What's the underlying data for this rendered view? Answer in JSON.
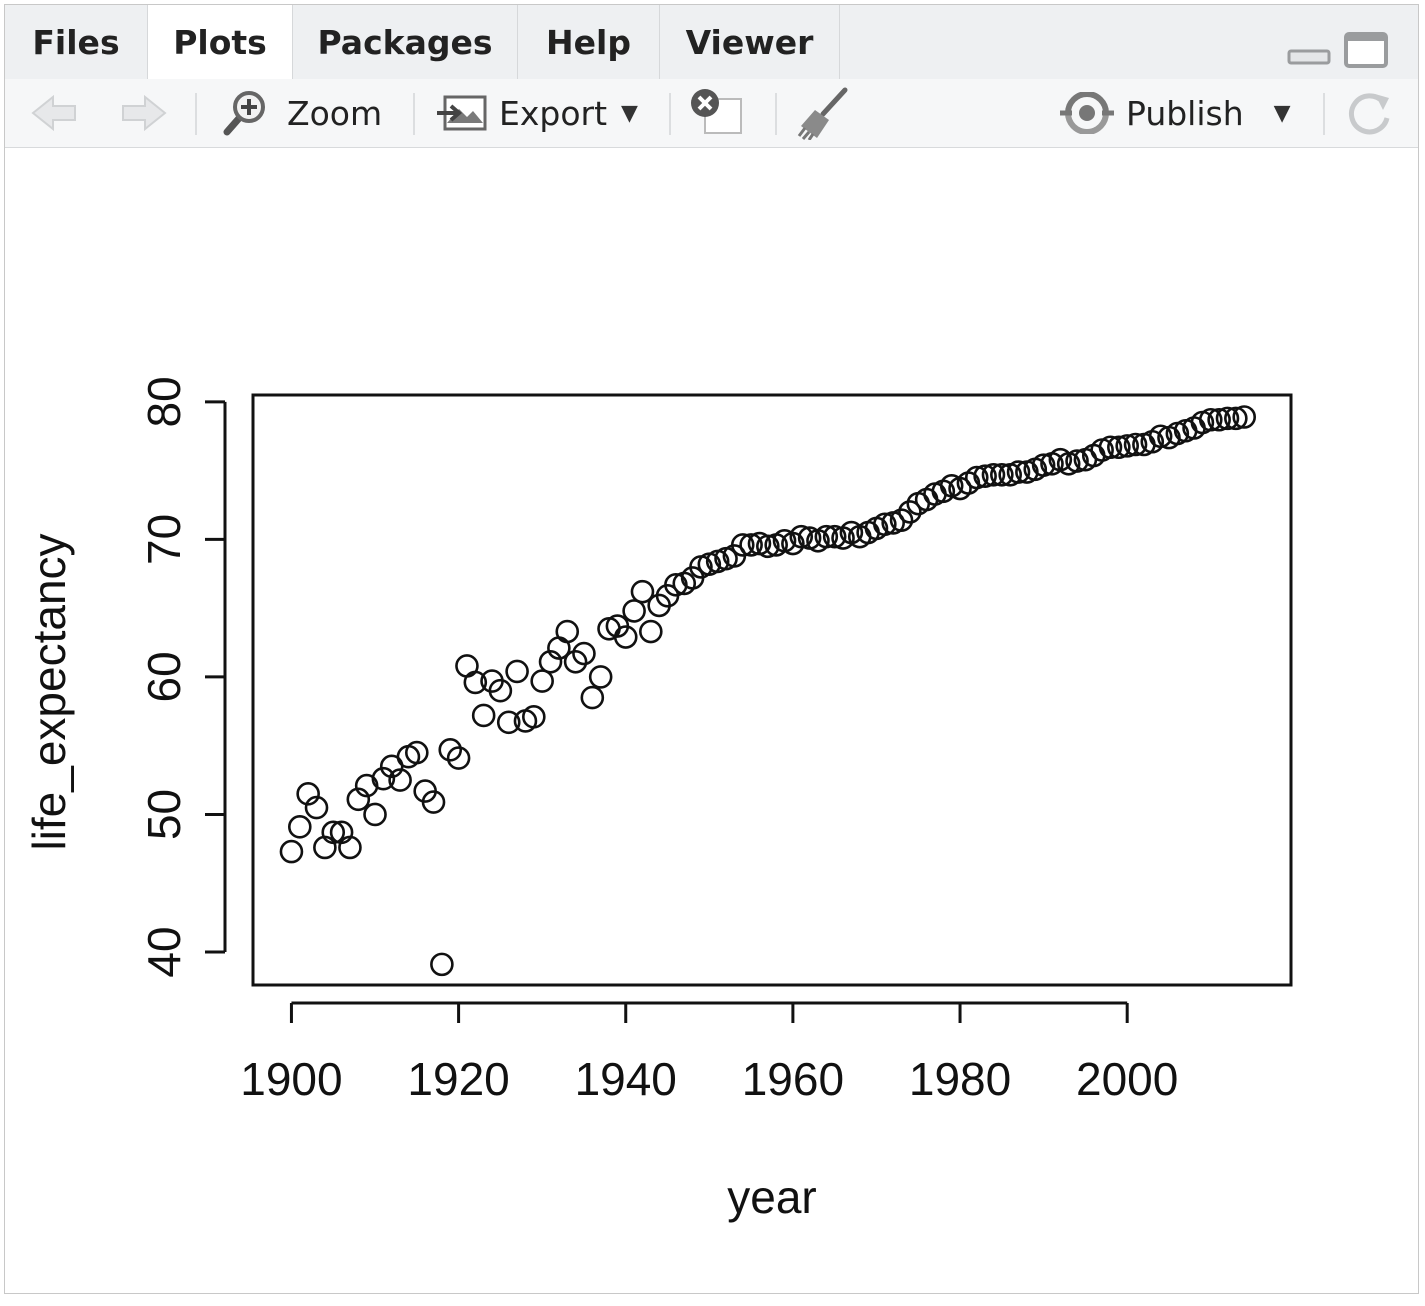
{
  "tabs": [
    {
      "label": "Files",
      "active": false
    },
    {
      "label": "Plots",
      "active": true
    },
    {
      "label": "Packages",
      "active": false
    },
    {
      "label": "Help",
      "active": false
    },
    {
      "label": "Viewer",
      "active": false
    }
  ],
  "toolbar": {
    "back_icon": "arrow-left-icon",
    "forward_icon": "arrow-right-icon",
    "zoom_label": "Zoom",
    "export_label": "Export",
    "remove_icon": "remove-plot-icon",
    "clear_icon": "broom-icon",
    "publish_label": "Publish",
    "refresh_icon": "refresh-icon"
  },
  "chart_data": {
    "type": "scatter",
    "title": "",
    "xlabel": "year",
    "ylabel": "life_expectancy",
    "xlim": [
      1895.4,
      2019.6
    ],
    "ylim": [
      37.6,
      80.5
    ],
    "xticks": [
      1900,
      1920,
      1940,
      1960,
      1980,
      2000
    ],
    "yticks": [
      40,
      50,
      60,
      70,
      80
    ],
    "grid": false,
    "marker": "open-circle",
    "points": [
      [
        1900,
        47.3
      ],
      [
        1901,
        49.1
      ],
      [
        1902,
        51.5
      ],
      [
        1903,
        50.5
      ],
      [
        1904,
        47.6
      ],
      [
        1905,
        48.7
      ],
      [
        1906,
        48.7
      ],
      [
        1907,
        47.6
      ],
      [
        1908,
        51.1
      ],
      [
        1909,
        52.1
      ],
      [
        1910,
        50.0
      ],
      [
        1911,
        52.6
      ],
      [
        1912,
        53.5
      ],
      [
        1913,
        52.5
      ],
      [
        1914,
        54.2
      ],
      [
        1915,
        54.5
      ],
      [
        1916,
        51.7
      ],
      [
        1917,
        50.9
      ],
      [
        1918,
        39.1
      ],
      [
        1919,
        54.7
      ],
      [
        1920,
        54.1
      ],
      [
        1921,
        60.8
      ],
      [
        1922,
        59.6
      ],
      [
        1923,
        57.2
      ],
      [
        1924,
        59.7
      ],
      [
        1925,
        59.0
      ],
      [
        1926,
        56.7
      ],
      [
        1927,
        60.4
      ],
      [
        1928,
        56.8
      ],
      [
        1929,
        57.1
      ],
      [
        1930,
        59.7
      ],
      [
        1931,
        61.1
      ],
      [
        1932,
        62.1
      ],
      [
        1933,
        63.3
      ],
      [
        1934,
        61.1
      ],
      [
        1935,
        61.7
      ],
      [
        1936,
        58.5
      ],
      [
        1937,
        60.0
      ],
      [
        1938,
        63.5
      ],
      [
        1939,
        63.7
      ],
      [
        1940,
        62.9
      ],
      [
        1941,
        64.8
      ],
      [
        1942,
        66.2
      ],
      [
        1943,
        63.3
      ],
      [
        1944,
        65.2
      ],
      [
        1945,
        65.9
      ],
      [
        1946,
        66.7
      ],
      [
        1947,
        66.8
      ],
      [
        1948,
        67.2
      ],
      [
        1949,
        68.0
      ],
      [
        1950,
        68.2
      ],
      [
        1951,
        68.4
      ],
      [
        1952,
        68.6
      ],
      [
        1953,
        68.8
      ],
      [
        1954,
        69.6
      ],
      [
        1955,
        69.6
      ],
      [
        1956,
        69.7
      ],
      [
        1957,
        69.5
      ],
      [
        1958,
        69.6
      ],
      [
        1959,
        69.9
      ],
      [
        1960,
        69.7
      ],
      [
        1961,
        70.2
      ],
      [
        1962,
        70.1
      ],
      [
        1963,
        69.9
      ],
      [
        1964,
        70.2
      ],
      [
        1965,
        70.2
      ],
      [
        1966,
        70.1
      ],
      [
        1967,
        70.5
      ],
      [
        1968,
        70.2
      ],
      [
        1969,
        70.5
      ],
      [
        1970,
        70.8
      ],
      [
        1971,
        71.1
      ],
      [
        1972,
        71.2
      ],
      [
        1973,
        71.4
      ],
      [
        1974,
        72.0
      ],
      [
        1975,
        72.6
      ],
      [
        1976,
        72.9
      ],
      [
        1977,
        73.3
      ],
      [
        1978,
        73.5
      ],
      [
        1979,
        73.9
      ],
      [
        1980,
        73.7
      ],
      [
        1981,
        74.1
      ],
      [
        1982,
        74.5
      ],
      [
        1983,
        74.6
      ],
      [
        1984,
        74.7
      ],
      [
        1985,
        74.7
      ],
      [
        1986,
        74.7
      ],
      [
        1987,
        74.9
      ],
      [
        1988,
        74.9
      ],
      [
        1989,
        75.1
      ],
      [
        1990,
        75.4
      ],
      [
        1991,
        75.5
      ],
      [
        1992,
        75.8
      ],
      [
        1993,
        75.5
      ],
      [
        1994,
        75.7
      ],
      [
        1995,
        75.8
      ],
      [
        1996,
        76.1
      ],
      [
        1997,
        76.5
      ],
      [
        1998,
        76.7
      ],
      [
        1999,
        76.7
      ],
      [
        2000,
        76.8
      ],
      [
        2001,
        76.9
      ],
      [
        2002,
        76.9
      ],
      [
        2003,
        77.1
      ],
      [
        2004,
        77.5
      ],
      [
        2005,
        77.4
      ],
      [
        2006,
        77.7
      ],
      [
        2007,
        77.9
      ],
      [
        2008,
        78.1
      ],
      [
        2009,
        78.5
      ],
      [
        2010,
        78.7
      ],
      [
        2011,
        78.7
      ],
      [
        2012,
        78.8
      ],
      [
        2013,
        78.8
      ],
      [
        2014,
        78.9
      ]
    ]
  }
}
